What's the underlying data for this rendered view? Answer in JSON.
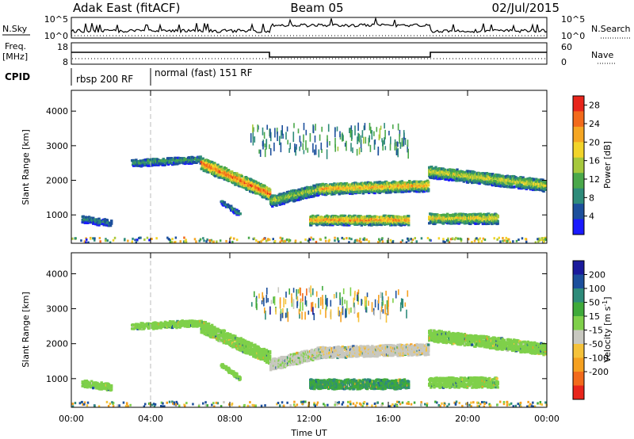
{
  "header": {
    "station": "Adak East (fitACF)",
    "beam": "Beam 05",
    "date": "02/Jul/2015"
  },
  "strip": {
    "nsky_label": "N.Sky",
    "nsearch_label": "N.Search",
    "nsky_ticks": [
      "10^5",
      "10^0"
    ],
    "nsearch_ticks": [
      "10^5",
      "10^0"
    ],
    "freq_label_line1": "Freq.",
    "freq_label_line2": "[MHz]",
    "freq_ticks": [
      "18",
      "8"
    ],
    "nave_label": "Nave",
    "nave_ticks": [
      "60",
      "0"
    ],
    "cpid_label": "CPID",
    "cpid_segments": [
      {
        "name": "rbsp 200 RF",
        "start_hour": 0.0,
        "end_hour": 4.0
      },
      {
        "name": "normal (fast) 151 RF",
        "start_hour": 4.0,
        "end_hour": 24.0
      }
    ]
  },
  "chart_data": [
    {
      "type": "heatmap",
      "quantity": "Power",
      "ylabel": "Slant Range [km]",
      "xlabel": "",
      "xlim_hours": [
        0,
        24
      ],
      "ylim": [
        180,
        4600
      ],
      "x_ticks": [
        "00:00",
        "04:00",
        "08:00",
        "12:00",
        "16:00",
        "20:00",
        "00:00"
      ],
      "y_ticks": [
        1000,
        2000,
        3000,
        4000
      ],
      "colorbar": {
        "label": "Power [dB]",
        "ticks": [
          4,
          8,
          12,
          16,
          20,
          24,
          28
        ],
        "range": [
          0,
          30
        ],
        "colors": [
          "#1a1aff",
          "#1c4f9c",
          "#2e8b7a",
          "#4aa84a",
          "#a6c83c",
          "#f2d42a",
          "#f5a623",
          "#f26a1b",
          "#e8251b"
        ]
      },
      "echo_bands": [
        {
          "start_hour": 0.5,
          "end_hour": 2.0,
          "range_start_km": 880,
          "range_end_km": 760,
          "width_km": 180,
          "peak_db": 8
        },
        {
          "start_hour": 3.0,
          "end_hour": 6.5,
          "range_start_km": 2500,
          "range_end_km": 2600,
          "width_km": 180,
          "peak_db": 10
        },
        {
          "start_hour": 6.5,
          "end_hour": 10.0,
          "range_start_km": 2500,
          "range_end_km": 1600,
          "width_km": 350,
          "peak_db": 24
        },
        {
          "start_hour": 10.0,
          "end_hour": 12.5,
          "range_start_km": 1400,
          "range_end_km": 1750,
          "width_km": 300,
          "peak_db": 14
        },
        {
          "start_hour": 12.5,
          "end_hour": 18.0,
          "range_start_km": 1750,
          "range_end_km": 1850,
          "width_km": 300,
          "peak_db": 20
        },
        {
          "start_hour": 18.0,
          "end_hour": 23.9,
          "range_start_km": 2250,
          "range_end_km": 1850,
          "width_km": 320,
          "peak_db": 16
        },
        {
          "start_hour": 12.0,
          "end_hour": 17.0,
          "range_start_km": 850,
          "range_end_km": 850,
          "width_km": 260,
          "peak_db": 22
        },
        {
          "start_hour": 18.0,
          "end_hour": 21.5,
          "range_start_km": 900,
          "range_end_km": 900,
          "width_km": 280,
          "peak_db": 18
        },
        {
          "start_hour": 7.5,
          "end_hour": 8.5,
          "range_start_km": 1400,
          "range_end_km": 1000,
          "width_km": 120,
          "peak_db": 8
        }
      ]
    },
    {
      "type": "heatmap",
      "quantity": "Velocity",
      "ylabel": "Slant Range [km]",
      "xlabel": "Time UT",
      "xlim_hours": [
        0,
        24
      ],
      "ylim": [
        180,
        4600
      ],
      "x_ticks": [
        "00:00",
        "04:00",
        "08:00",
        "12:00",
        "16:00",
        "20:00",
        "00:00"
      ],
      "y_ticks": [
        1000,
        2000,
        3000,
        4000
      ],
      "colorbar": {
        "label": "Velocity [m s^-1]",
        "ticks": [
          200,
          100,
          50,
          15,
          -15,
          -50,
          -100,
          -200
        ],
        "colors": [
          "#1a1a9c",
          "#1c4f9c",
          "#2e8b7a",
          "#3faa3a",
          "#7fd04a",
          "#c8c8c0",
          "#f5c23a",
          "#f5a020",
          "#f26a1b",
          "#e8251b"
        ]
      },
      "echo_bands": [
        {
          "start_hour": 0.5,
          "end_hour": 2.0,
          "range_start_km": 880,
          "range_end_km": 760,
          "width_km": 180,
          "velocity": 0
        },
        {
          "start_hour": 3.0,
          "end_hour": 6.5,
          "range_start_km": 2500,
          "range_end_km": 2600,
          "width_km": 180,
          "velocity": 0
        },
        {
          "start_hour": 6.5,
          "end_hour": 10.0,
          "range_start_km": 2500,
          "range_end_km": 1600,
          "width_km": 350,
          "velocity": 0
        },
        {
          "start_hour": 10.0,
          "end_hour": 12.5,
          "range_start_km": 1400,
          "range_end_km": 1750,
          "width_km": 300,
          "velocity": -20
        },
        {
          "start_hour": 12.5,
          "end_hour": 18.0,
          "range_start_km": 1750,
          "range_end_km": 1850,
          "width_km": 300,
          "velocity": -25
        },
        {
          "start_hour": 18.0,
          "end_hour": 23.9,
          "range_start_km": 2250,
          "range_end_km": 1850,
          "width_km": 320,
          "velocity": 0
        },
        {
          "start_hour": 12.0,
          "end_hour": 17.0,
          "range_start_km": 850,
          "range_end_km": 850,
          "width_km": 260,
          "velocity": 30
        },
        {
          "start_hour": 18.0,
          "end_hour": 21.5,
          "range_start_km": 900,
          "range_end_km": 900,
          "width_km": 280,
          "velocity": 0
        },
        {
          "start_hour": 7.5,
          "end_hour": 8.5,
          "range_start_km": 1400,
          "range_end_km": 1000,
          "width_km": 120,
          "velocity": 0
        }
      ]
    }
  ]
}
